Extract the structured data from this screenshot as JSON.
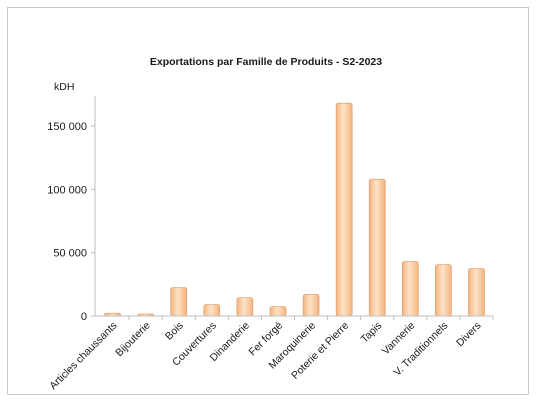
{
  "chart_data": {
    "type": "bar",
    "title": "Exportations  par Famille de Produits - S2-2023",
    "ylabel": "kDH",
    "xlabel": "",
    "categories": [
      "Articles chaussants",
      "Bijouterie",
      "Bois",
      "Couvertures",
      "Dinanderie",
      "Fer forgé",
      "Maroquinerie",
      "Poterie et Pierre",
      "Tapis",
      "Vannerie",
      "V. Traditionnels",
      "Divers"
    ],
    "values": [
      2200,
      1600,
      22500,
      9000,
      14500,
      7500,
      17000,
      168000,
      108000,
      43000,
      40500,
      37500
    ],
    "ylim": [
      0,
      180000
    ],
    "yticks": [
      0,
      50000,
      100000,
      150000
    ],
    "ytick_labels": [
      "0",
      "50 000",
      "100 000",
      "150 000"
    ],
    "grid": false,
    "legend": "none",
    "bar_color": "#f5b47f",
    "bar_highlight": "#fde3c8",
    "bar_edge": "#d99560",
    "axis_color": "#bfbfbf"
  }
}
